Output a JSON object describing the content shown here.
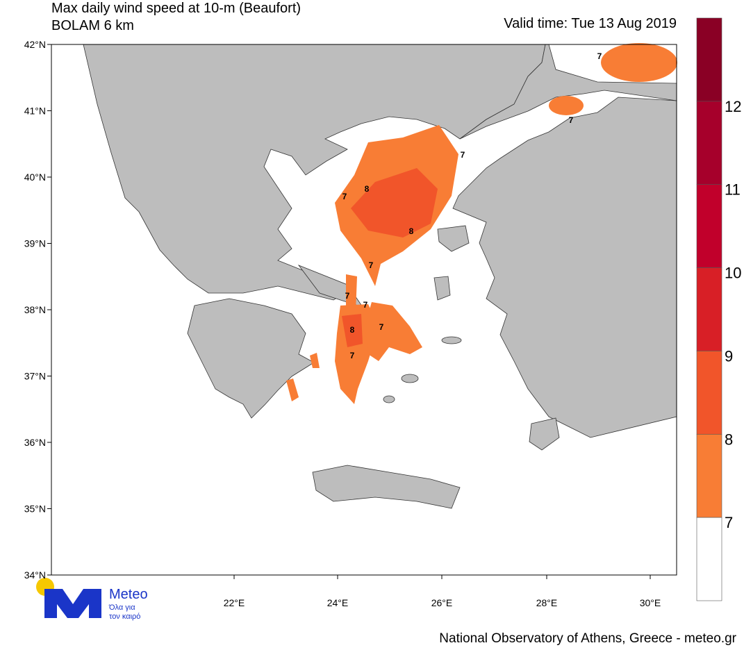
{
  "header": {
    "title": "Max daily wind speed at 10-m (Beaufort)",
    "subtitle": "BOLAM 6 km",
    "valid_time": "Valid time: Tue 13 Aug 2019"
  },
  "map": {
    "lat_labels": [
      "42°N",
      "41°N",
      "40°N",
      "39°N",
      "38°N",
      "37°N",
      "36°N",
      "35°N",
      "34°N"
    ],
    "lon_labels": [
      "22°E",
      "24°E",
      "26°E",
      "28°E",
      "30°E"
    ],
    "contour_labels": [
      "7",
      "7",
      "7",
      "7",
      "8",
      "8",
      "7",
      "7",
      "7",
      "8",
      "7",
      "7"
    ]
  },
  "colorbar": {
    "labels": [
      "12",
      "11",
      "10",
      "9",
      "8",
      "7"
    ],
    "colors": [
      "#8a0025",
      "#a6002b",
      "#c1002b",
      "#d81f26",
      "#f1552a",
      "#f87d35",
      "#ffffff"
    ]
  },
  "logo": {
    "name": "Meteo",
    "tagline_1": "Όλα για",
    "tagline_2": "τον καιρό"
  },
  "footer": "National Observatory of Athens, Greece - meteo.gr"
}
